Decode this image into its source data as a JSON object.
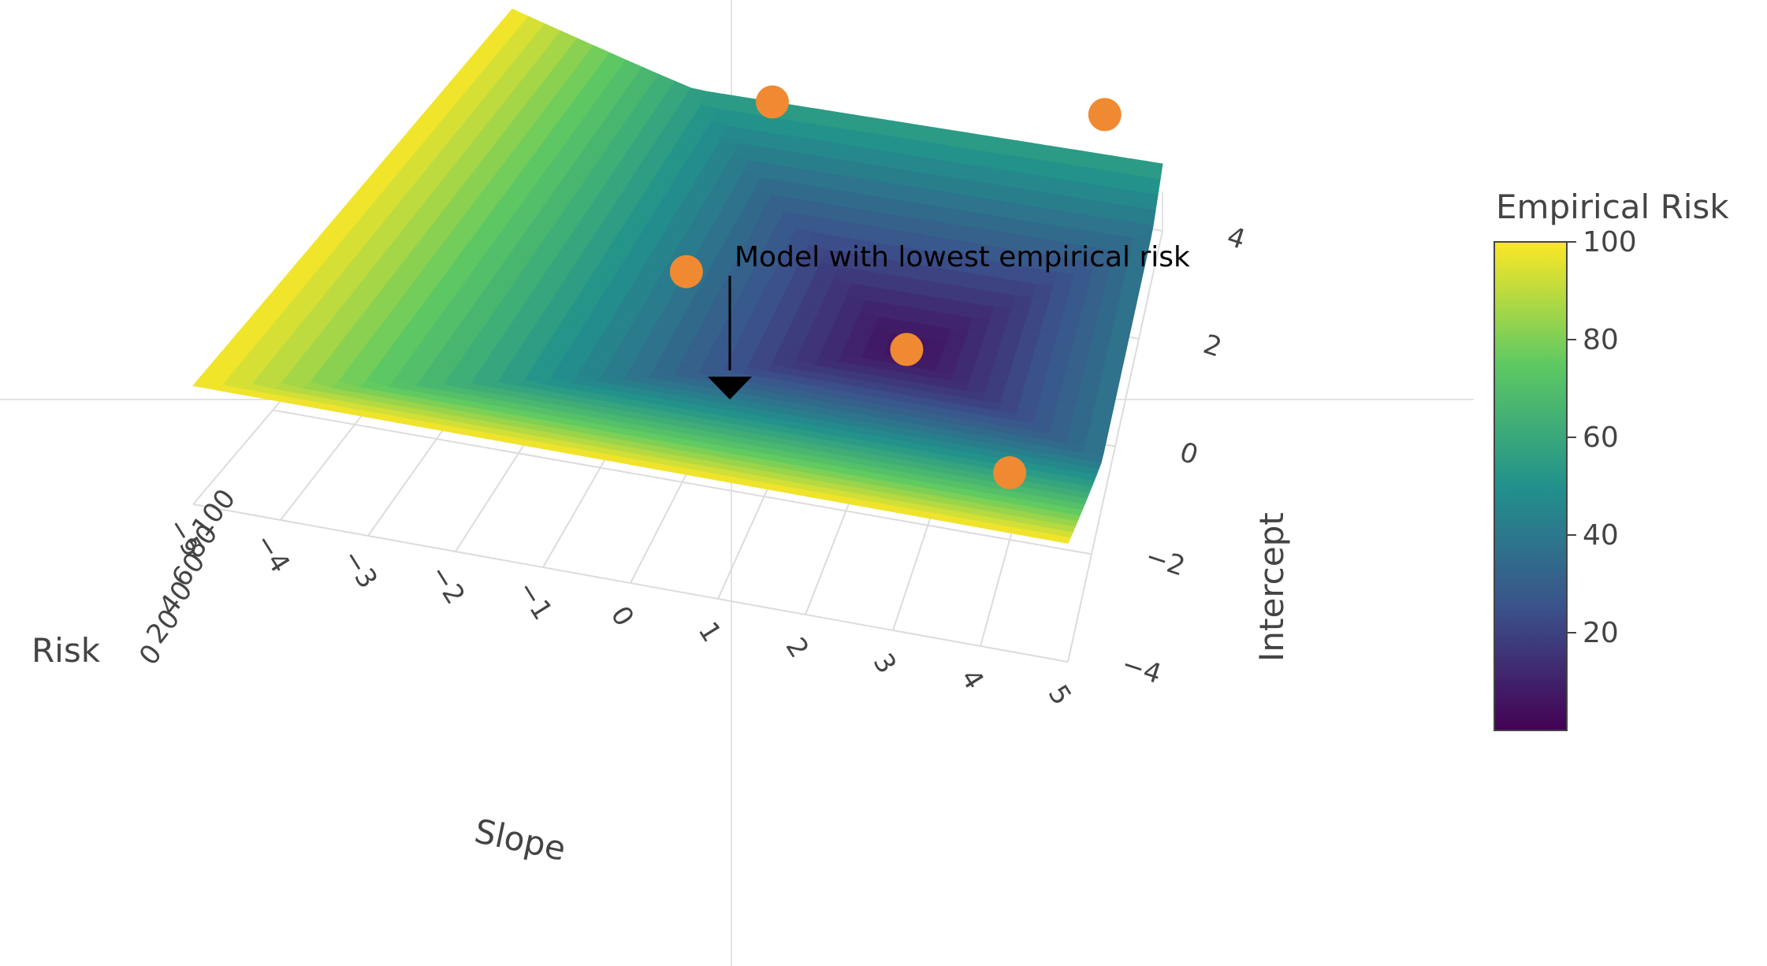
{
  "chart_data": {
    "type": "surface",
    "x_axis": {
      "label": "Slope",
      "range": [
        -5,
        5
      ],
      "ticks": [
        "−5",
        "−4",
        "−3",
        "−2",
        "−1",
        "0",
        "1",
        "2",
        "3",
        "4",
        "5"
      ]
    },
    "y_axis": {
      "label": "Intercept",
      "range": [
        -4,
        4
      ],
      "ticks": [
        "−4",
        "−2",
        "0",
        "2",
        "4"
      ]
    },
    "z_axis": {
      "label": "Risk",
      "range": [
        0,
        100
      ],
      "ticks": [
        "0",
        "20",
        "40",
        "60",
        "80",
        "100"
      ]
    },
    "colorbar": {
      "title": "Empirical Risk",
      "range": [
        0,
        100
      ],
      "ticks": [
        "20",
        "40",
        "60",
        "80",
        "100"
      ],
      "colorscale": [
        "#440154",
        "#3b528b",
        "#21918c",
        "#5ec962",
        "#fde725"
      ]
    },
    "surface": {
      "description": "bowl-shaped empirical risk surface over slope and intercept with minimum near slope 2, intercept 1",
      "minimum": {
        "slope": 2,
        "intercept": 1,
        "risk": 5
      },
      "maximum_risk": 100
    },
    "points": [
      {
        "slope": -1,
        "intercept": 4,
        "risk": 50
      },
      {
        "slope": 4,
        "intercept": 4.5,
        "risk": 55
      },
      {
        "slope": -1,
        "intercept": 1,
        "risk": 45
      },
      {
        "slope": 2,
        "intercept": 1,
        "risk": 5
      },
      {
        "slope": 4,
        "intercept": -2,
        "risk": 70
      }
    ],
    "point_color": "#f08a32",
    "annotation": {
      "text": "Model with lowest empirical risk",
      "target_index": 3
    }
  }
}
